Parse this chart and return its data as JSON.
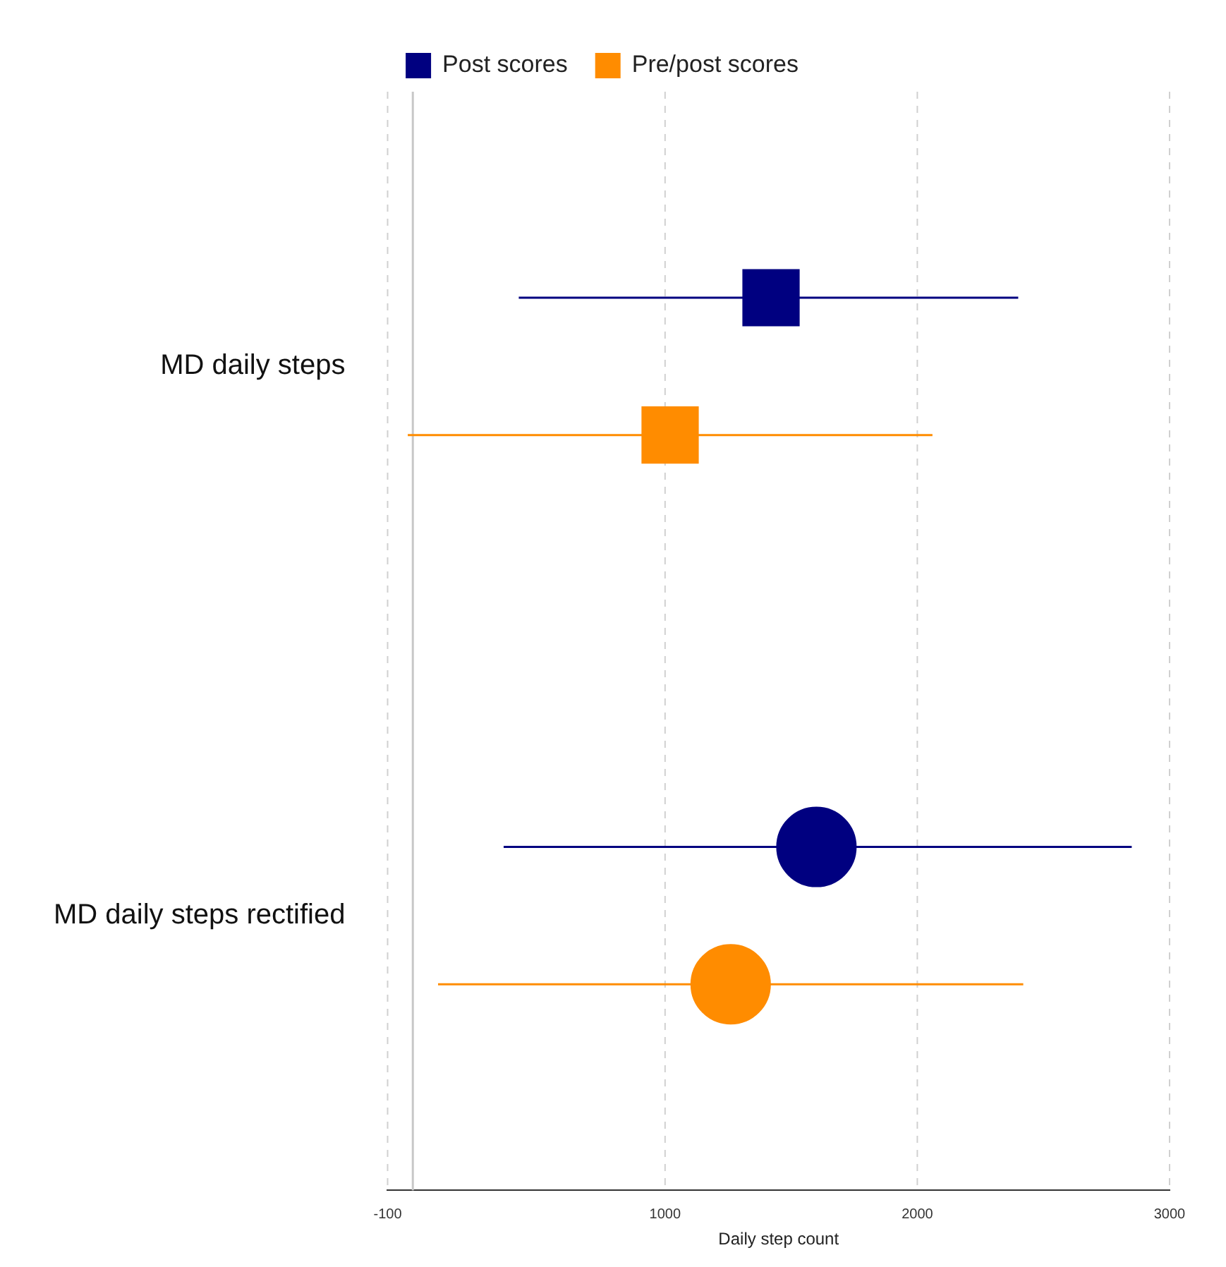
{
  "chart_data": {
    "type": "scatter",
    "orientation": "horizontal",
    "xlabel": "Daily step count",
    "categories": [
      "MD daily steps",
      "MD daily steps rectified"
    ],
    "series": [
      {
        "name": "Post scores",
        "color": "#000080",
        "values": [
          1420,
          1600
        ],
        "errors": [
          [
            420,
            2400
          ],
          [
            360,
            2850
          ]
        ]
      },
      {
        "name": "Pre/post scores",
        "color": "#ff8c00",
        "values": [
          1020,
          1260
        ],
        "errors": [
          [
            -20,
            2060
          ],
          [
            100,
            2420
          ]
        ]
      }
    ],
    "marker": [
      "square",
      "circle"
    ],
    "xlim": [
      -100,
      3000
    ],
    "xticks": [
      -100,
      1000,
      2000,
      3000
    ],
    "ref_lines": [
      {
        "axis": "x",
        "value": 0,
        "color": "#c8c8c8",
        "line_style": "solid"
      }
    ],
    "grid": "x",
    "legend": "top"
  }
}
